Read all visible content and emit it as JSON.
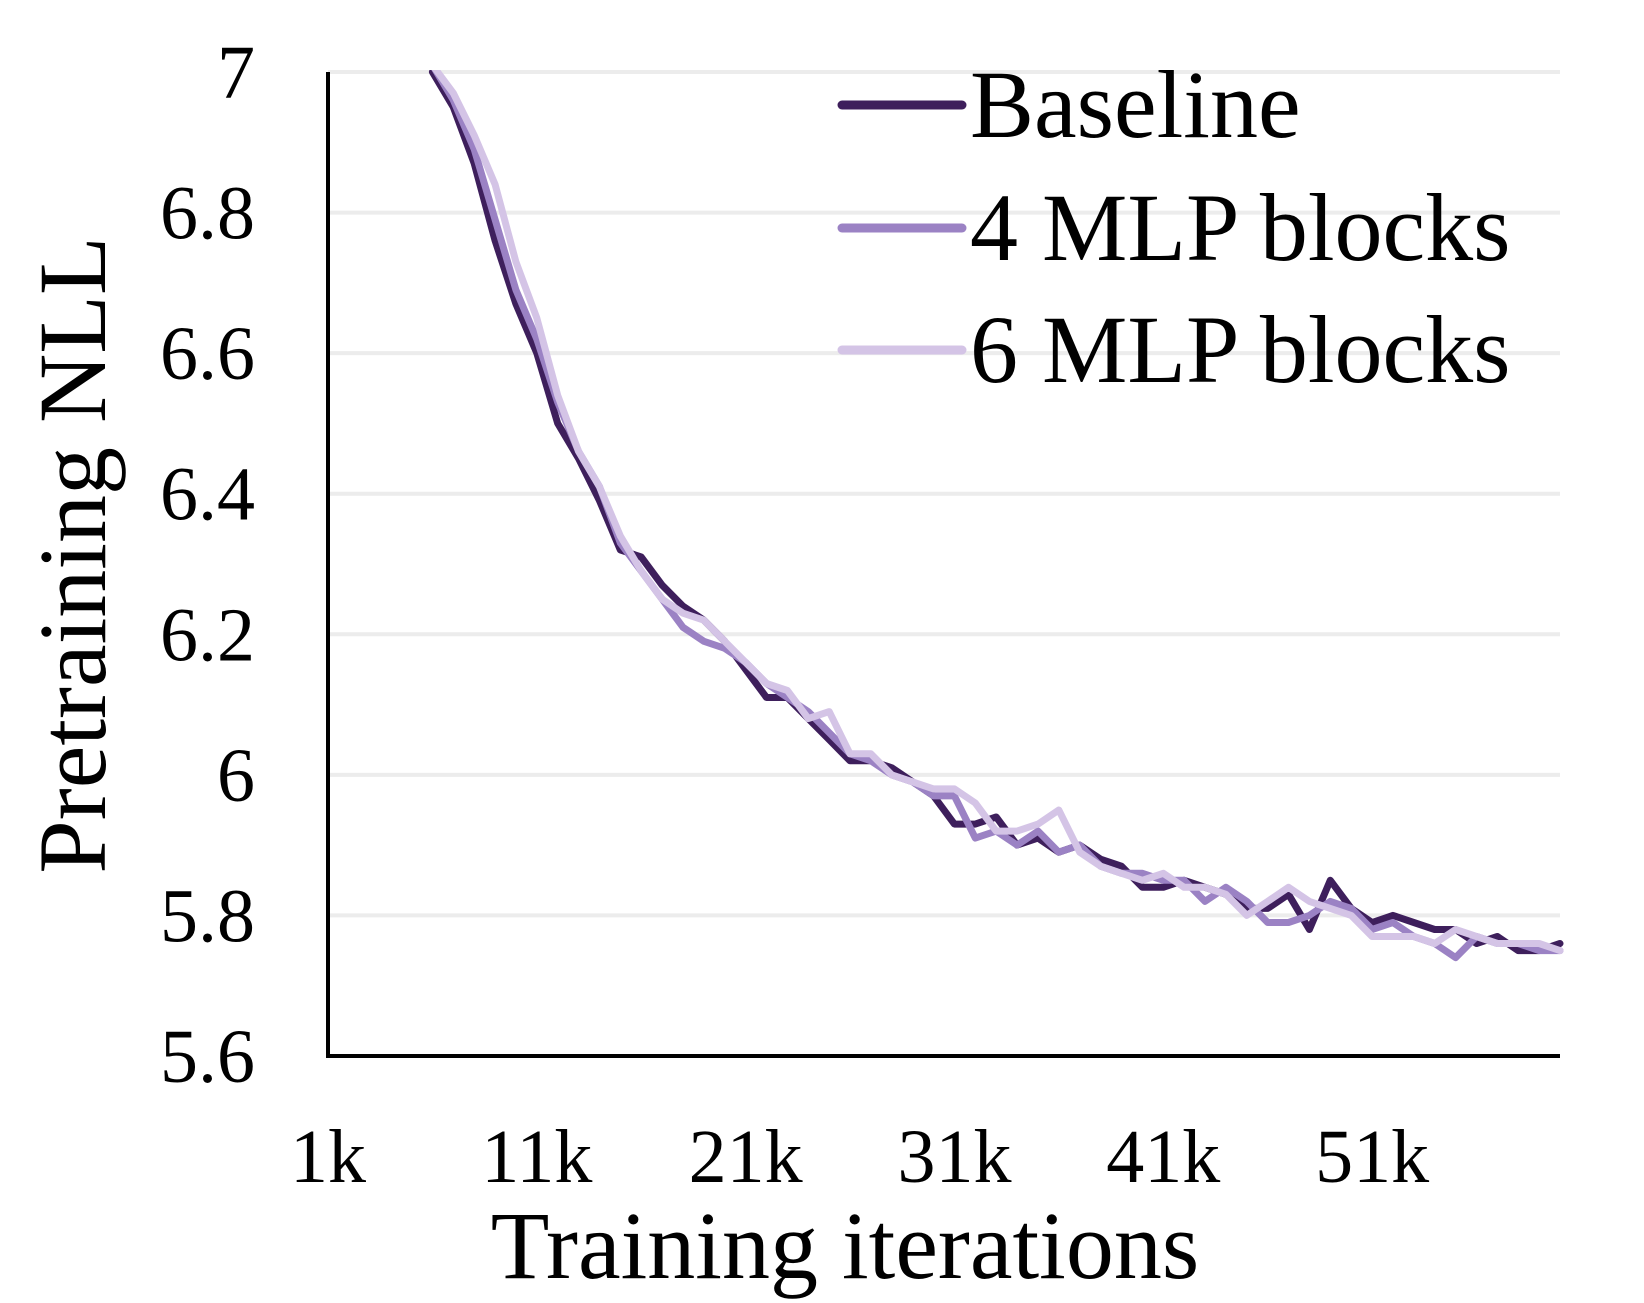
{
  "chart_data": {
    "type": "line",
    "xlabel": "Training iterations",
    "ylabel": "Pretraining NLL",
    "xlim": [
      1000,
      60000
    ],
    "ylim": [
      5.6,
      7.0
    ],
    "x_ticks": [
      1000,
      11000,
      21000,
      31000,
      41000,
      51000
    ],
    "x_tick_labels": [
      "1k",
      "11k",
      "21k",
      "31k",
      "41k",
      "51k"
    ],
    "y_ticks": [
      5.6,
      5.8,
      6.0,
      6.2,
      6.4,
      6.6,
      6.8,
      7.0
    ],
    "y_tick_labels": [
      "5.6",
      "5.8",
      "6",
      "6.2",
      "6.4",
      "6.6",
      "6.8",
      "7"
    ],
    "grid": true,
    "legend_position": "top-right",
    "series": [
      {
        "name": "Baseline",
        "color": "#3e1f5c",
        "x": [
          6000,
          7000,
          8000,
          9000,
          10000,
          11000,
          12000,
          13000,
          14000,
          15000,
          16000,
          17000,
          18000,
          19000,
          20000,
          21000,
          22000,
          23000,
          24000,
          25000,
          26000,
          27000,
          28000,
          29000,
          30000,
          31000,
          32000,
          33000,
          34000,
          35000,
          36000,
          37000,
          38000,
          39000,
          40000,
          41000,
          42000,
          43000,
          44000,
          45000,
          46000,
          47000,
          48000,
          49000,
          50000,
          51000,
          52000,
          53000,
          54000,
          55000,
          56000,
          57000,
          58000,
          59000,
          60000
        ],
        "values": [
          7.0,
          6.95,
          6.87,
          6.76,
          6.67,
          6.6,
          6.5,
          6.45,
          6.39,
          6.32,
          6.31,
          6.27,
          6.24,
          6.22,
          6.19,
          6.15,
          6.11,
          6.11,
          6.08,
          6.05,
          6.02,
          6.02,
          6.01,
          5.99,
          5.97,
          5.93,
          5.93,
          5.94,
          5.9,
          5.91,
          5.89,
          5.9,
          5.88,
          5.87,
          5.84,
          5.84,
          5.85,
          5.84,
          5.83,
          5.81,
          5.81,
          5.83,
          5.78,
          5.85,
          5.81,
          5.79,
          5.8,
          5.79,
          5.78,
          5.78,
          5.76,
          5.77,
          5.75,
          5.75,
          5.76
        ]
      },
      {
        "name": "4 MLP blocks",
        "color": "#9b82c4",
        "x": [
          6000,
          7000,
          8000,
          9000,
          10000,
          11000,
          12000,
          13000,
          14000,
          15000,
          16000,
          17000,
          18000,
          19000,
          20000,
          21000,
          22000,
          23000,
          24000,
          25000,
          26000,
          27000,
          28000,
          29000,
          30000,
          31000,
          32000,
          33000,
          34000,
          35000,
          36000,
          37000,
          38000,
          39000,
          40000,
          41000,
          42000,
          43000,
          44000,
          45000,
          46000,
          47000,
          48000,
          49000,
          50000,
          51000,
          52000,
          53000,
          54000,
          55000,
          56000,
          57000,
          58000,
          59000,
          60000
        ],
        "values": [
          7.01,
          6.96,
          6.89,
          6.79,
          6.69,
          6.62,
          6.53,
          6.46,
          6.41,
          6.33,
          6.29,
          6.25,
          6.21,
          6.19,
          6.18,
          6.16,
          6.13,
          6.11,
          6.09,
          6.06,
          6.03,
          6.02,
          6.0,
          5.99,
          5.97,
          5.97,
          5.91,
          5.92,
          5.9,
          5.92,
          5.89,
          5.9,
          5.87,
          5.86,
          5.86,
          5.85,
          5.85,
          5.82,
          5.84,
          5.82,
          5.79,
          5.79,
          5.8,
          5.82,
          5.81,
          5.78,
          5.79,
          5.77,
          5.76,
          5.74,
          5.77,
          5.76,
          5.76,
          5.75,
          5.75
        ]
      },
      {
        "name": "6 MLP blocks",
        "color": "#d4c4e6",
        "x": [
          6000,
          7000,
          8000,
          9000,
          10000,
          11000,
          12000,
          13000,
          14000,
          15000,
          16000,
          17000,
          18000,
          19000,
          20000,
          21000,
          22000,
          23000,
          24000,
          25000,
          26000,
          27000,
          28000,
          29000,
          30000,
          31000,
          32000,
          33000,
          34000,
          35000,
          36000,
          37000,
          38000,
          39000,
          40000,
          41000,
          42000,
          43000,
          44000,
          45000,
          46000,
          47000,
          48000,
          49000,
          50000,
          51000,
          52000,
          53000,
          54000,
          55000,
          56000,
          57000,
          58000,
          59000,
          60000
        ],
        "values": [
          7.01,
          6.97,
          6.91,
          6.84,
          6.73,
          6.65,
          6.54,
          6.46,
          6.41,
          6.34,
          6.29,
          6.25,
          6.23,
          6.22,
          6.19,
          6.16,
          6.13,
          6.12,
          6.08,
          6.09,
          6.03,
          6.03,
          6.0,
          5.99,
          5.98,
          5.98,
          5.96,
          5.92,
          5.92,
          5.93,
          5.95,
          5.89,
          5.87,
          5.86,
          5.85,
          5.86,
          5.84,
          5.84,
          5.83,
          5.8,
          5.82,
          5.84,
          5.82,
          5.81,
          5.8,
          5.77,
          5.77,
          5.77,
          5.76,
          5.78,
          5.77,
          5.76,
          5.76,
          5.76,
          5.75
        ]
      }
    ]
  }
}
